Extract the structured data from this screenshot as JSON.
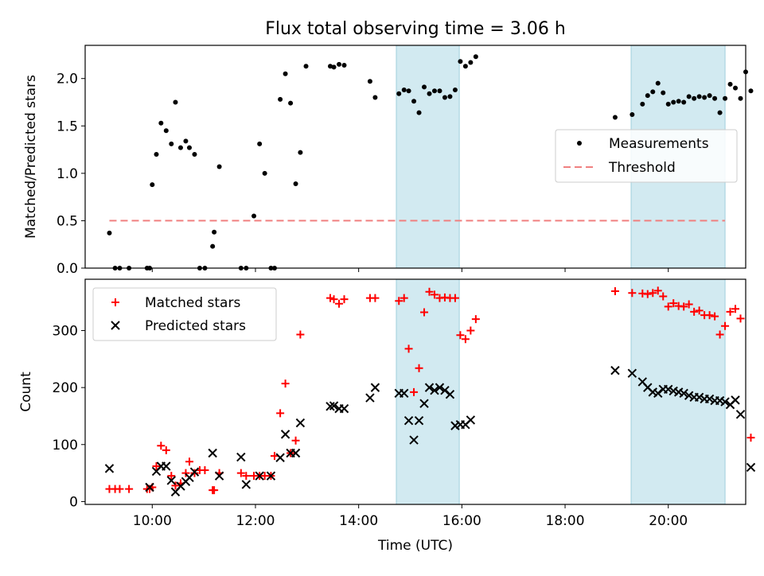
{
  "figure_title": "Flux total observing time = 3.06 h",
  "colors": {
    "measurement": "#000000",
    "threshold": "#f08080",
    "matched": "#ff0000",
    "predicted": "#000000",
    "shade": "#add8e6"
  },
  "chart_data": [
    {
      "type": "scatter",
      "ylabel": "Matched/Predicted stars",
      "xlabel": "",
      "x_unit": "hours UTC",
      "xlim": [
        8.7,
        21.5
      ],
      "ylim": [
        0,
        2.35
      ],
      "yticks": [
        0.0,
        0.5,
        1.0,
        1.5,
        2.0
      ],
      "ytick_labels": [
        "0.0",
        "0.5",
        "1.0",
        "1.5",
        "2.0"
      ],
      "shaded_spans": [
        [
          14.73,
          15.95
        ],
        [
          19.28,
          21.1
        ]
      ],
      "legend": {
        "position": "center-right",
        "entries": [
          "Measurements",
          "Threshold"
        ]
      },
      "threshold": {
        "name": "Threshold",
        "y": 0.5,
        "x": [
          9.17,
          21.1
        ]
      },
      "series": [
        {
          "name": "Measurements",
          "points": [
            [
              9.17,
              0.37
            ],
            [
              9.28,
              0.0
            ],
            [
              9.37,
              0.0
            ],
            [
              9.55,
              0.0
            ],
            [
              9.9,
              0.0
            ],
            [
              9.95,
              0.0
            ],
            [
              10.0,
              0.88
            ],
            [
              10.08,
              1.2
            ],
            [
              10.17,
              1.53
            ],
            [
              10.27,
              1.45
            ],
            [
              10.37,
              1.31
            ],
            [
              10.45,
              1.75
            ],
            [
              10.55,
              1.27
            ],
            [
              10.65,
              1.34
            ],
            [
              10.72,
              1.27
            ],
            [
              10.82,
              1.2
            ],
            [
              10.92,
              0.0
            ],
            [
              11.02,
              0.0
            ],
            [
              11.17,
              0.23
            ],
            [
              11.2,
              0.38
            ],
            [
              11.3,
              1.07
            ],
            [
              11.72,
              0.0
            ],
            [
              11.82,
              0.0
            ],
            [
              11.97,
              0.55
            ],
            [
              12.08,
              1.31
            ],
            [
              12.18,
              1.0
            ],
            [
              12.3,
              0.0
            ],
            [
              12.37,
              0.0
            ],
            [
              12.48,
              1.78
            ],
            [
              12.58,
              2.05
            ],
            [
              12.68,
              1.74
            ],
            [
              12.78,
              0.89
            ],
            [
              12.87,
              1.22
            ],
            [
              12.98,
              2.13
            ],
            [
              13.45,
              2.13
            ],
            [
              13.52,
              2.12
            ],
            [
              13.62,
              2.15
            ],
            [
              13.72,
              2.14
            ],
            [
              14.22,
              1.97
            ],
            [
              14.32,
              1.8
            ],
            [
              14.78,
              1.84
            ],
            [
              14.88,
              1.88
            ],
            [
              14.97,
              1.87
            ],
            [
              15.07,
              1.76
            ],
            [
              15.17,
              1.64
            ],
            [
              15.27,
              1.91
            ],
            [
              15.37,
              1.84
            ],
            [
              15.47,
              1.87
            ],
            [
              15.57,
              1.87
            ],
            [
              15.67,
              1.8
            ],
            [
              15.77,
              1.81
            ],
            [
              15.87,
              1.88
            ],
            [
              15.97,
              2.18
            ],
            [
              16.07,
              2.13
            ],
            [
              16.17,
              2.17
            ],
            [
              16.27,
              2.23
            ],
            [
              18.97,
              1.59
            ],
            [
              19.3,
              1.62
            ],
            [
              19.5,
              1.73
            ],
            [
              19.6,
              1.82
            ],
            [
              19.7,
              1.86
            ],
            [
              19.8,
              1.95
            ],
            [
              19.9,
              1.85
            ],
            [
              20.0,
              1.73
            ],
            [
              20.1,
              1.75
            ],
            [
              20.2,
              1.76
            ],
            [
              20.3,
              1.75
            ],
            [
              20.4,
              1.81
            ],
            [
              20.5,
              1.79
            ],
            [
              20.6,
              1.81
            ],
            [
              20.7,
              1.8
            ],
            [
              20.8,
              1.82
            ],
            [
              20.9,
              1.79
            ],
            [
              21.0,
              1.64
            ],
            [
              21.1,
              1.79
            ],
            [
              21.2,
              1.94
            ],
            [
              21.3,
              1.9
            ],
            [
              21.4,
              1.79
            ],
            [
              21.5,
              2.07
            ],
            [
              21.6,
              1.87
            ]
          ]
        }
      ]
    },
    {
      "type": "scatter",
      "ylabel": "Count",
      "xlabel": "Time (UTC)",
      "x_unit": "hours UTC",
      "xlim": [
        8.7,
        21.5
      ],
      "ylim": [
        -5,
        390
      ],
      "yticks": [
        0,
        100,
        200,
        300
      ],
      "ytick_labels": [
        "0",
        "100",
        "200",
        "300"
      ],
      "xticks": [
        10,
        12,
        14,
        16,
        18,
        20
      ],
      "xtick_labels": [
        "10:00",
        "12:00",
        "14:00",
        "16:00",
        "18:00",
        "20:00"
      ],
      "shaded_spans": [
        [
          14.73,
          15.95
        ],
        [
          19.28,
          21.1
        ]
      ],
      "legend": {
        "position": "upper-left",
        "entries": [
          "Matched stars",
          "Predicted stars"
        ]
      },
      "series": [
        {
          "name": "Matched stars",
          "marker": "plus",
          "points": [
            [
              9.17,
              22
            ],
            [
              9.28,
              22
            ],
            [
              9.37,
              22
            ],
            [
              9.55,
              22
            ],
            [
              9.9,
              22
            ],
            [
              9.95,
              22
            ],
            [
              10.0,
              25
            ],
            [
              10.08,
              62
            ],
            [
              10.17,
              98
            ],
            [
              10.27,
              90
            ],
            [
              10.37,
              45
            ],
            [
              10.45,
              28
            ],
            [
              10.55,
              32
            ],
            [
              10.65,
              50
            ],
            [
              10.72,
              70
            ],
            [
              10.82,
              50
            ],
            [
              10.92,
              55
            ],
            [
              11.02,
              55
            ],
            [
              11.17,
              20
            ],
            [
              11.2,
              20
            ],
            [
              11.3,
              50
            ],
            [
              11.72,
              50
            ],
            [
              11.82,
              45
            ],
            [
              11.97,
              45
            ],
            [
              12.08,
              45
            ],
            [
              12.18,
              45
            ],
            [
              12.3,
              45
            ],
            [
              12.37,
              80
            ],
            [
              12.48,
              155
            ],
            [
              12.58,
              207
            ],
            [
              12.68,
              85
            ],
            [
              12.78,
              107
            ],
            [
              12.87,
              293
            ],
            [
              13.45,
              357
            ],
            [
              13.52,
              355
            ],
            [
              13.62,
              347
            ],
            [
              13.72,
              355
            ],
            [
              14.22,
              357
            ],
            [
              14.32,
              357
            ],
            [
              14.78,
              352
            ],
            [
              14.88,
              357
            ],
            [
              14.97,
              268
            ],
            [
              15.07,
              192
            ],
            [
              15.17,
              234
            ],
            [
              15.27,
              332
            ],
            [
              15.37,
              368
            ],
            [
              15.47,
              363
            ],
            [
              15.57,
              357
            ],
            [
              15.67,
              358
            ],
            [
              15.77,
              357
            ],
            [
              15.87,
              357
            ],
            [
              15.97,
              292
            ],
            [
              16.07,
              285
            ],
            [
              16.17,
              300
            ],
            [
              16.27,
              320
            ],
            [
              18.97,
              369
            ],
            [
              19.3,
              366
            ],
            [
              19.5,
              365
            ],
            [
              19.6,
              364
            ],
            [
              19.7,
              366
            ],
            [
              19.8,
              370
            ],
            [
              19.9,
              360
            ],
            [
              20.0,
              342
            ],
            [
              20.1,
              348
            ],
            [
              20.2,
              343
            ],
            [
              20.3,
              342
            ],
            [
              20.4,
              346
            ],
            [
              20.5,
              333
            ],
            [
              20.6,
              335
            ],
            [
              20.7,
              327
            ],
            [
              20.8,
              327
            ],
            [
              20.9,
              325
            ],
            [
              21.0,
              293
            ],
            [
              21.1,
              308
            ],
            [
              21.2,
              333
            ],
            [
              21.3,
              338
            ],
            [
              21.4,
              321
            ],
            [
              21.6,
              112
            ]
          ]
        },
        {
          "name": "Predicted stars",
          "marker": "cross",
          "points": [
            [
              9.17,
              58
            ],
            [
              9.95,
              25
            ],
            [
              10.08,
              53
            ],
            [
              10.17,
              62
            ],
            [
              10.27,
              62
            ],
            [
              10.37,
              37
            ],
            [
              10.45,
              17
            ],
            [
              10.55,
              27
            ],
            [
              10.65,
              35
            ],
            [
              10.72,
              42
            ],
            [
              10.82,
              52
            ],
            [
              11.17,
              85
            ],
            [
              11.3,
              45
            ],
            [
              11.72,
              78
            ],
            [
              11.82,
              30
            ],
            [
              12.08,
              45
            ],
            [
              12.3,
              45
            ],
            [
              12.48,
              77
            ],
            [
              12.58,
              118
            ],
            [
              12.68,
              85
            ],
            [
              12.78,
              85
            ],
            [
              12.87,
              138
            ],
            [
              13.45,
              167
            ],
            [
              13.52,
              168
            ],
            [
              13.62,
              163
            ],
            [
              13.72,
              163
            ],
            [
              14.22,
              182
            ],
            [
              14.32,
              200
            ],
            [
              14.78,
              190
            ],
            [
              14.88,
              190
            ],
            [
              14.97,
              142
            ],
            [
              15.07,
              108
            ],
            [
              15.17,
              142
            ],
            [
              15.27,
              172
            ],
            [
              15.37,
              200
            ],
            [
              15.47,
              195
            ],
            [
              15.57,
              200
            ],
            [
              15.67,
              195
            ],
            [
              15.77,
              188
            ],
            [
              15.87,
              133
            ],
            [
              15.97,
              135
            ],
            [
              16.07,
              135
            ],
            [
              16.17,
              143
            ],
            [
              18.97,
              230
            ],
            [
              19.3,
              225
            ],
            [
              19.5,
              210
            ],
            [
              19.6,
              200
            ],
            [
              19.7,
              192
            ],
            [
              19.8,
              190
            ],
            [
              19.9,
              197
            ],
            [
              20.0,
              197
            ],
            [
              20.1,
              194
            ],
            [
              20.2,
              192
            ],
            [
              20.3,
              190
            ],
            [
              20.4,
              186
            ],
            [
              20.5,
              183
            ],
            [
              20.6,
              183
            ],
            [
              20.7,
              180
            ],
            [
              20.8,
              180
            ],
            [
              20.9,
              177
            ],
            [
              21.0,
              177
            ],
            [
              21.1,
              175
            ],
            [
              21.2,
              170
            ],
            [
              21.3,
              178
            ],
            [
              21.4,
              153
            ],
            [
              21.6,
              60
            ]
          ]
        }
      ]
    }
  ]
}
